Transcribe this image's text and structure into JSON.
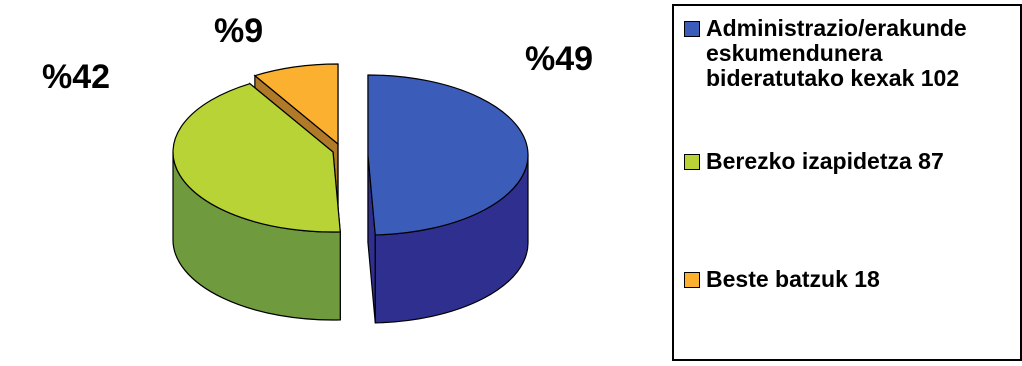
{
  "chart_data": {
    "type": "pie",
    "title": "",
    "slices": [
      {
        "label": "Administrazio/erakunde eskumendunera bideratutako kexak",
        "value": 102,
        "percent_label": "%49",
        "color": "#3b5cb8",
        "side_color": "#2e2f8f"
      },
      {
        "label": "Berezko izapidetza",
        "value": 87,
        "percent_label": "%42",
        "color": "#b7d335",
        "side_color": "#6f9a3d"
      },
      {
        "label": "Beste batzuk",
        "value": 18,
        "percent_label": "%9",
        "color": "#fbb030",
        "side_color": "#b07a28"
      }
    ],
    "legend": {
      "placement": "right",
      "items": [
        {
          "text": "Administrazio/erakunde\neskumendunera\nbideratutako kexak 102",
          "color": "#3b5cb8"
        },
        {
          "text": "Berezko izapidetza  87",
          "color": "#b7d335"
        },
        {
          "text": "Beste batzuk 18",
          "color": "#fbb030"
        }
      ]
    }
  }
}
